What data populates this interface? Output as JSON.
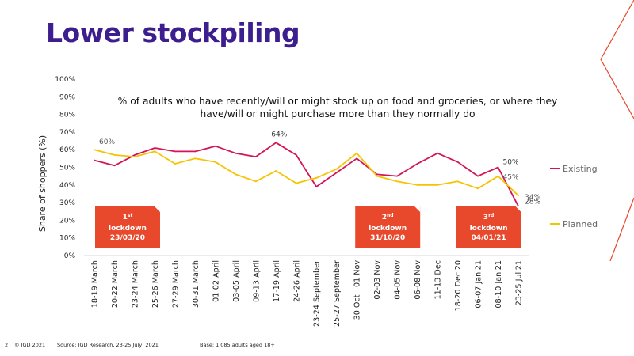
{
  "slide": {
    "title": "Lower stockpiling",
    "page_number": "2",
    "copyright": "© IGD 2021",
    "source": "Source: IGD Research, 23-25 July, 2021",
    "base": "Base: 1,085 adults aged 18+",
    "accent_color": "#e8492c",
    "title_color": "#3d1e8e"
  },
  "chart_data": {
    "type": "line",
    "title": "% of adults who have recently/will or might stock up on food and groceries, or where they have/will or might purchase more than they normally do",
    "ylabel": "Share of shoppers (%)",
    "xlabel": "",
    "ylim": [
      0,
      100
    ],
    "yticks": [
      "0%",
      "10%",
      "20%",
      "30%",
      "40%",
      "50%",
      "60%",
      "70%",
      "80%",
      "90%",
      "100%"
    ],
    "categories": [
      "18-19 March",
      "20-22 March",
      "23-24 March",
      "25-26 March",
      "27-29 March",
      "30-31 March",
      "01-02 April",
      "03-05 April",
      "09-13 April",
      "17-19 April",
      "24-26 April",
      "23-24 September",
      "25-27 September",
      "30 Oct - 01 Nov",
      "02-03 Nov",
      "04-05 Nov",
      "06-08 Nov",
      "11-13 Dec",
      "18-20 Dec'20",
      "06-07 Jan'21",
      "08-10 Jan'21",
      "23-25 Jul'21"
    ],
    "series": [
      {
        "name": "Existing",
        "color": "#d4145a",
        "values": [
          54,
          51,
          57,
          61,
          59,
          59,
          62,
          58,
          56,
          64,
          57,
          39,
          47,
          55,
          46,
          45,
          52,
          58,
          53,
          45,
          50,
          28
        ]
      },
      {
        "name": "Planned",
        "color": "#f5c400",
        "values": [
          60,
          57,
          56,
          59,
          52,
          55,
          53,
          46,
          42,
          48,
          41,
          44,
          49,
          58,
          45,
          42,
          40,
          40,
          42,
          38,
          45,
          34
        ]
      }
    ],
    "data_labels": [
      {
        "series": 1,
        "index": 0,
        "text": "60%"
      },
      {
        "series": 0,
        "index": 9,
        "text": "64%"
      },
      {
        "series": 0,
        "index": 20,
        "text": "50%"
      },
      {
        "series": 1,
        "index": 20,
        "text": "45%"
      },
      {
        "series": 1,
        "index": 21,
        "text": "34%"
      },
      {
        "series": 0,
        "index": 21,
        "text": "28%"
      }
    ],
    "annotations": [
      {
        "index": 0,
        "sup": "st",
        "lines": [
          "1",
          "lockdown",
          "23/03/20"
        ]
      },
      {
        "index": 13,
        "sup": "nd",
        "lines": [
          "2",
          "lockdown",
          "31/10/20"
        ]
      },
      {
        "index": 18,
        "sup": "rd",
        "lines": [
          "3",
          "lockdown",
          "04/01/21"
        ]
      }
    ],
    "legend_position": "right",
    "grid": false
  }
}
